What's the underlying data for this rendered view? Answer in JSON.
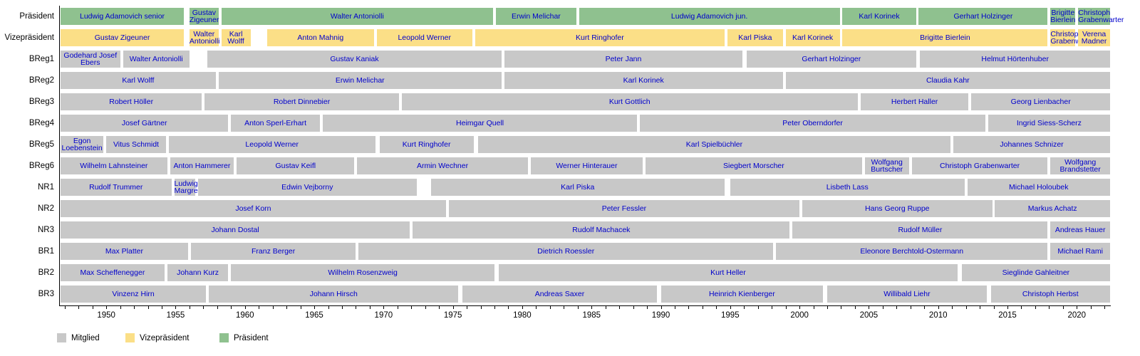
{
  "chart_data": {
    "type": "gantt",
    "title": "",
    "axis": {
      "start_year": 1946.6,
      "end_year": 2022.4,
      "tick_every": 1,
      "label_every": 5,
      "labeled_years": [
        1950,
        1955,
        1960,
        1965,
        1970,
        1975,
        1980,
        1985,
        1990,
        1995,
        2000,
        2005,
        2010,
        2015,
        2020
      ]
    },
    "palette": {
      "member": "#c8c8c8",
      "vice": "#fbdf87",
      "president": "#8fc18f",
      "label_text": "#0000cc",
      "axis": "#000000"
    },
    "legend": [
      {
        "label": "Mitglied",
        "type": "member"
      },
      {
        "label": "Vizepräsident",
        "type": "vice"
      },
      {
        "label": "Präsident",
        "type": "president"
      }
    ],
    "rows": [
      {
        "label": "Präsident",
        "blocks": [
          {
            "name": "Ludwig Adamovich senior",
            "type": "president",
            "start": 1946.7,
            "end": 1955.6
          },
          {
            "name": "Gustav Zigeuner",
            "type": "president",
            "start": 1956.0,
            "end": 1958.1
          },
          {
            "name": "Walter Antoniolli",
            "type": "president",
            "start": 1958.3,
            "end": 1977.9
          },
          {
            "name": "Erwin Melichar",
            "type": "president",
            "start": 1978.1,
            "end": 1983.9
          },
          {
            "name": "Ludwig Adamovich jun.",
            "type": "president",
            "start": 1984.1,
            "end": 2002.9
          },
          {
            "name": "Karl Korinek",
            "type": "president",
            "start": 2003.1,
            "end": 2008.4
          },
          {
            "name": "Gerhart Holzinger",
            "type": "president",
            "start": 2008.6,
            "end": 2017.9
          },
          {
            "name": "Brigitte Bierlein",
            "type": "president",
            "start": 2018.1,
            "end": 2019.9
          },
          {
            "name": "Christoph Grabenwarter",
            "type": "president",
            "start": 2020.1,
            "end": 2022.4
          }
        ]
      },
      {
        "label": "Vizepräsident",
        "blocks": [
          {
            "name": "Gustav Zigeuner",
            "type": "vice",
            "start": 1946.7,
            "end": 1955.6
          },
          {
            "name": "Walter Antoniolli",
            "type": "vice",
            "start": 1956.0,
            "end": 1958.1
          },
          {
            "name": "Karl Wolff",
            "type": "vice",
            "start": 1958.3,
            "end": 1960.4
          },
          {
            "name": "Anton Mahnig",
            "type": "vice",
            "start": 1961.6,
            "end": 1969.3
          },
          {
            "name": "Leopold Werner",
            "type": "vice",
            "start": 1969.5,
            "end": 1976.4
          },
          {
            "name": "Kurt Ringhofer",
            "type": "vice",
            "start": 1976.6,
            "end": 1994.6
          },
          {
            "name": "Karl Piska",
            "type": "vice",
            "start": 1994.8,
            "end": 1998.8
          },
          {
            "name": "Karl Korinek",
            "type": "vice",
            "start": 1999.0,
            "end": 2002.9
          },
          {
            "name": "Brigitte Bierlein",
            "type": "vice",
            "start": 2003.1,
            "end": 2017.9
          },
          {
            "name": "Christoph Grabenwarter",
            "type": "vice",
            "start": 2018.1,
            "end": 2019.9
          },
          {
            "name": "Verena Madner",
            "type": "vice",
            "start": 2020.1,
            "end": 2022.4
          }
        ]
      },
      {
        "label": "BReg1",
        "blocks": [
          {
            "name": "Godehard Josef Ebers",
            "type": "member",
            "start": 1946.7,
            "end": 1951.0
          },
          {
            "name": "Walter Antoniolli",
            "type": "member",
            "start": 1951.2,
            "end": 1956.0
          },
          {
            "name": "Gustav Kaniak",
            "type": "member",
            "start": 1957.3,
            "end": 1978.5
          },
          {
            "name": "Peter Jann",
            "type": "member",
            "start": 1978.7,
            "end": 1995.9
          },
          {
            "name": "Gerhart Holzinger",
            "type": "member",
            "start": 1996.2,
            "end": 2008.4
          },
          {
            "name": "Helmut Hörtenhuber",
            "type": "member",
            "start": 2008.7,
            "end": 2022.4
          }
        ]
      },
      {
        "label": "BReg2",
        "blocks": [
          {
            "name": "Karl Wolff",
            "type": "member",
            "start": 1946.7,
            "end": 1957.9
          },
          {
            "name": "Erwin Melichar",
            "type": "member",
            "start": 1958.1,
            "end": 1978.5
          },
          {
            "name": "Karl Korinek",
            "type": "member",
            "start": 1978.7,
            "end": 1998.8
          },
          {
            "name": "Claudia Kahr",
            "type": "member",
            "start": 1999.0,
            "end": 2022.4
          }
        ]
      },
      {
        "label": "BReg3",
        "blocks": [
          {
            "name": "Robert Höller",
            "type": "member",
            "start": 1946.7,
            "end": 1956.9
          },
          {
            "name": "Robert Dinnebier",
            "type": "member",
            "start": 1957.1,
            "end": 1971.1
          },
          {
            "name": "Kurt Gottlich",
            "type": "member",
            "start": 1971.3,
            "end": 2004.2
          },
          {
            "name": "Herbert Haller",
            "type": "member",
            "start": 2004.4,
            "end": 2012.2
          },
          {
            "name": "Georg Lienbacher",
            "type": "member",
            "start": 2012.4,
            "end": 2022.4
          }
        ]
      },
      {
        "label": "BReg4",
        "blocks": [
          {
            "name": "Josef Gärtner",
            "type": "member",
            "start": 1946.7,
            "end": 1958.8
          },
          {
            "name": "Anton Sperl-Erhart",
            "type": "member",
            "start": 1959.0,
            "end": 1965.4
          },
          {
            "name": "Heimgar Quell",
            "type": "member",
            "start": 1965.6,
            "end": 1988.3
          },
          {
            "name": "Peter Oberndorfer",
            "type": "member",
            "start": 1988.5,
            "end": 2013.4
          },
          {
            "name": "Ingrid Siess-Scherz",
            "type": "member",
            "start": 2013.6,
            "end": 2022.4
          }
        ]
      },
      {
        "label": "BReg5",
        "blocks": [
          {
            "name": "Egon Loebenstein",
            "type": "member",
            "start": 1946.7,
            "end": 1949.8
          },
          {
            "name": "Vitus Schmidt",
            "type": "member",
            "start": 1950.0,
            "end": 1954.3
          },
          {
            "name": "Leopold Werner",
            "type": "member",
            "start": 1954.5,
            "end": 1969.4
          },
          {
            "name": "Kurt Ringhofer",
            "type": "member",
            "start": 1969.7,
            "end": 1976.5
          },
          {
            "name": "Karl Spielbüchler",
            "type": "member",
            "start": 1976.8,
            "end": 2010.9
          },
          {
            "name": "Johannes Schnizer",
            "type": "member",
            "start": 2011.1,
            "end": 2022.4
          }
        ]
      },
      {
        "label": "BReg6",
        "blocks": [
          {
            "name": "Wilhelm Lahnsteiner",
            "type": "member",
            "start": 1946.7,
            "end": 1954.4
          },
          {
            "name": "Anton Hammerer",
            "type": "member",
            "start": 1954.6,
            "end": 1959.2
          },
          {
            "name": "Gustav Keifl",
            "type": "member",
            "start": 1959.4,
            "end": 1967.9
          },
          {
            "name": "Armin Wechner",
            "type": "member",
            "start": 1968.1,
            "end": 1980.4
          },
          {
            "name": "Werner Hinterauer",
            "type": "member",
            "start": 1980.6,
            "end": 1988.7
          },
          {
            "name": "Siegbert Morscher",
            "type": "member",
            "start": 1988.9,
            "end": 2004.5
          },
          {
            "name": "Wolfgang Burtscher",
            "type": "member",
            "start": 2004.7,
            "end": 2007.9
          },
          {
            "name": "Christoph Grabenwarter",
            "type": "member",
            "start": 2008.1,
            "end": 2017.9
          },
          {
            "name": "Wolfgang Brandstetter",
            "type": "member",
            "start": 2018.1,
            "end": 2022.4
          }
        ]
      },
      {
        "label": "NR1",
        "blocks": [
          {
            "name": "Rudolf Trummer",
            "type": "member",
            "start": 1946.7,
            "end": 1954.7
          },
          {
            "name": "Ludwig Margreiter",
            "type": "member",
            "start": 1954.9,
            "end": 1956.4
          },
          {
            "name": "Edwin Vejborny",
            "type": "member",
            "start": 1956.6,
            "end": 1972.4
          },
          {
            "name": "Karl Piska",
            "type": "member",
            "start": 1973.4,
            "end": 1994.6
          },
          {
            "name": "Lisbeth Lass",
            "type": "member",
            "start": 1995.0,
            "end": 2011.9
          },
          {
            "name": "Michael Holoubek",
            "type": "member",
            "start": 2012.1,
            "end": 2022.4
          }
        ]
      },
      {
        "label": "NR2",
        "blocks": [
          {
            "name": "Josef Korn",
            "type": "member",
            "start": 1946.7,
            "end": 1974.5
          },
          {
            "name": "Peter Fessler",
            "type": "member",
            "start": 1974.7,
            "end": 2000.0
          },
          {
            "name": "Hans Georg Ruppe",
            "type": "member",
            "start": 2000.2,
            "end": 2013.9
          },
          {
            "name": "Markus Achatz",
            "type": "member",
            "start": 2014.1,
            "end": 2022.4
          }
        ]
      },
      {
        "label": "NR3",
        "blocks": [
          {
            "name": "Johann Dostal",
            "type": "member",
            "start": 1946.7,
            "end": 1971.9
          },
          {
            "name": "Rudolf Machacek",
            "type": "member",
            "start": 1972.1,
            "end": 1999.3
          },
          {
            "name": "Rudolf Müller",
            "type": "member",
            "start": 1999.5,
            "end": 2017.9
          },
          {
            "name": "Andreas Hauer",
            "type": "member",
            "start": 2018.1,
            "end": 2022.4
          }
        ]
      },
      {
        "label": "BR1",
        "blocks": [
          {
            "name": "Max Platter",
            "type": "member",
            "start": 1946.7,
            "end": 1955.9
          },
          {
            "name": "Franz Berger",
            "type": "member",
            "start": 1956.1,
            "end": 1968.0
          },
          {
            "name": "Dietrich Roessler",
            "type": "member",
            "start": 1968.2,
            "end": 1998.1
          },
          {
            "name": "Eleonore Berchtold-Ostermann",
            "type": "member",
            "start": 1998.3,
            "end": 2017.9
          },
          {
            "name": "Michael Rami",
            "type": "member",
            "start": 2018.1,
            "end": 2022.4
          }
        ]
      },
      {
        "label": "BR2",
        "blocks": [
          {
            "name": "Max Scheffenegger",
            "type": "member",
            "start": 1946.7,
            "end": 1954.2
          },
          {
            "name": "Johann Kurz",
            "type": "member",
            "start": 1954.4,
            "end": 1958.8
          },
          {
            "name": "Wilhelm Rosenzweig",
            "type": "member",
            "start": 1959.0,
            "end": 1978.0
          },
          {
            "name": "Kurt Heller",
            "type": "member",
            "start": 1978.3,
            "end": 2011.4
          },
          {
            "name": "Sieglinde Gahleitner",
            "type": "member",
            "start": 2011.7,
            "end": 2022.4
          }
        ]
      },
      {
        "label": "BR3",
        "blocks": [
          {
            "name": "Vinzenz Hirn",
            "type": "member",
            "start": 1946.7,
            "end": 1957.2
          },
          {
            "name": "Johann Hirsch",
            "type": "member",
            "start": 1957.4,
            "end": 1975.4
          },
          {
            "name": "Andreas Saxer",
            "type": "member",
            "start": 1975.7,
            "end": 1989.7
          },
          {
            "name": "Heinrich Kienberger",
            "type": "member",
            "start": 1990.0,
            "end": 2001.7
          },
          {
            "name": "Willibald Liehr",
            "type": "member",
            "start": 2002.0,
            "end": 2013.5
          },
          {
            "name": "Christoph Herbst",
            "type": "member",
            "start": 2013.8,
            "end": 2022.4
          }
        ]
      }
    ]
  }
}
